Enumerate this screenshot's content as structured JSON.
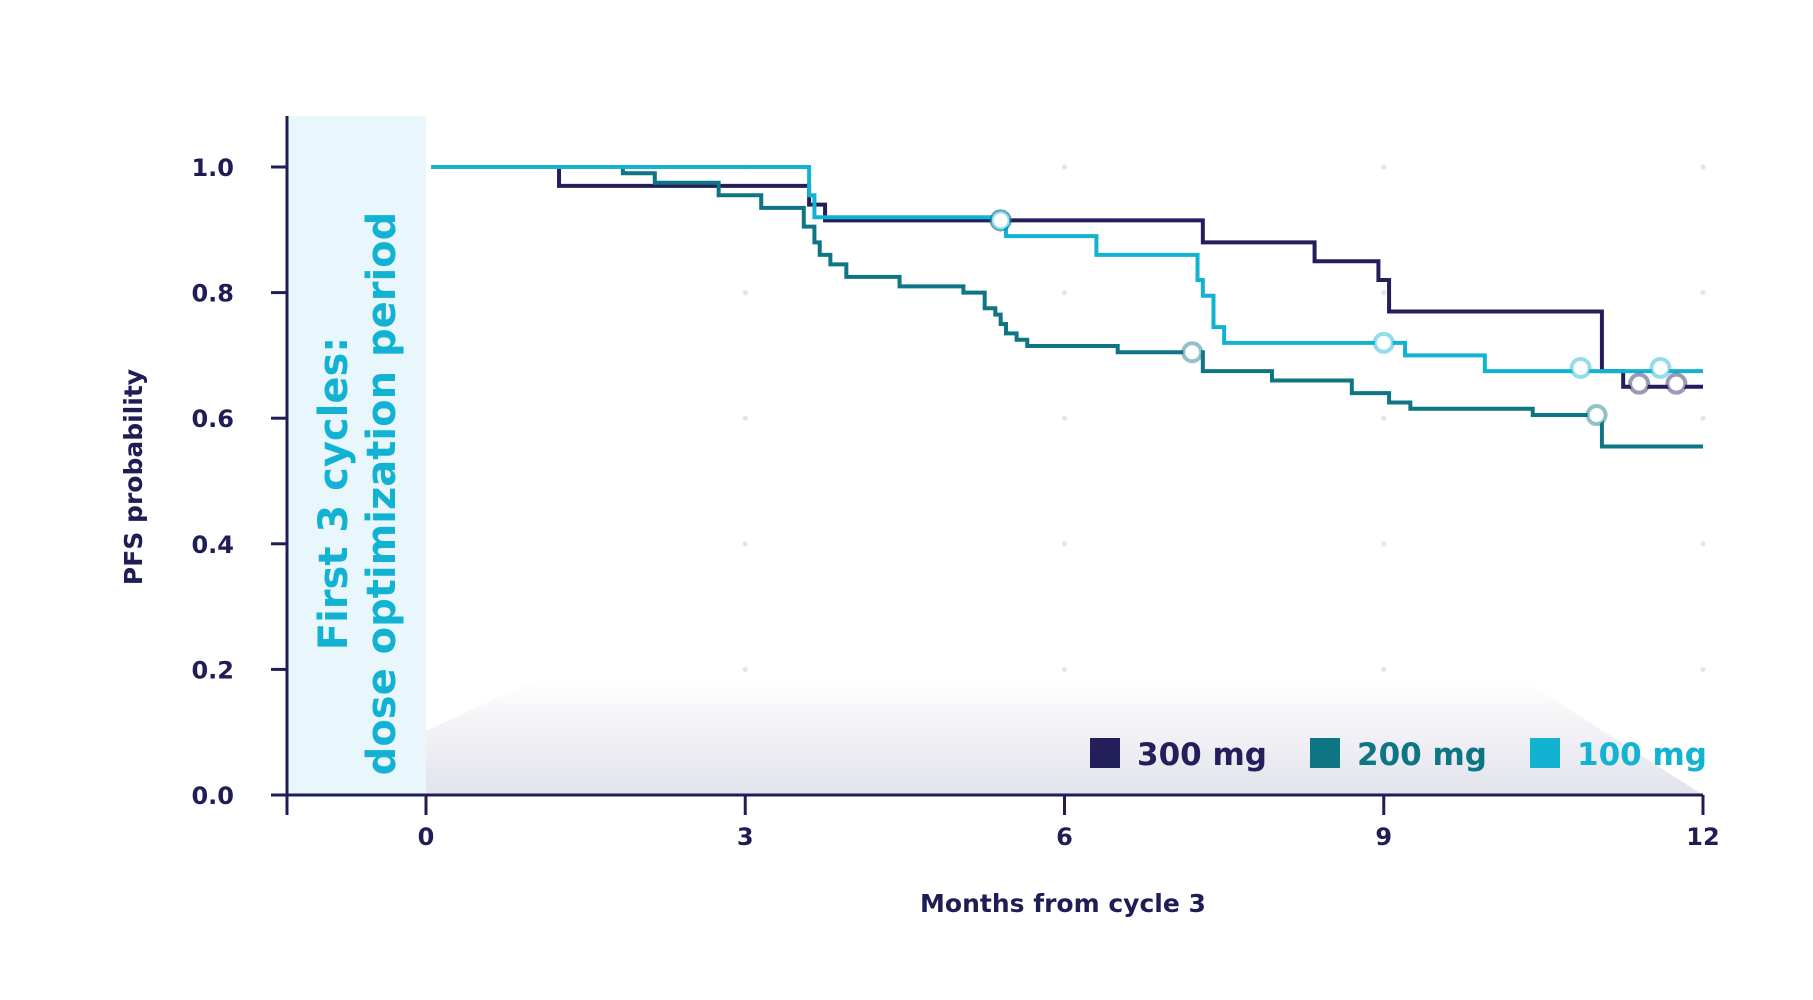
{
  "chart_data": {
    "type": "line",
    "step": true,
    "ylabel": "PFS probability",
    "xlabel": "Months from cycle 3",
    "xlim": [
      -1.3,
      12
    ],
    "ylim": [
      0,
      1.0
    ],
    "xticks": [
      0,
      3,
      6,
      9,
      12
    ],
    "xtick_labels": [
      "0",
      "3",
      "6",
      "9",
      "12"
    ],
    "yticks": [
      0.0,
      0.2,
      0.4,
      0.6,
      0.8,
      1.0
    ],
    "ytick_labels": [
      "0.0",
      "0.2",
      "0.4",
      "0.6",
      "0.8",
      "1.0"
    ],
    "grid": "dotted",
    "legend_position": "bottom-right",
    "shaded_region": {
      "x": [
        -1.3,
        0
      ],
      "color": "#e9f6fb",
      "label_line1": "First 3 cycles:",
      "label_line2": "dose optimization period"
    },
    "series": [
      {
        "name": "300 mg",
        "color": "#221f5b",
        "x": [
          0.05,
          1.25,
          3.6,
          3.75,
          7.25,
          7.3,
          8.35,
          8.95,
          9.05,
          11.05,
          11.25,
          12
        ],
        "y": [
          1.0,
          0.97,
          0.94,
          0.915,
          0.915,
          0.88,
          0.85,
          0.82,
          0.77,
          0.675,
          0.65,
          0.65
        ],
        "censored": [
          [
            5.4,
            0.915
          ],
          [
            11.4,
            0.655
          ],
          [
            11.75,
            0.655
          ]
        ]
      },
      {
        "name": "200 mg",
        "color": "#0e7585",
        "x": [
          0.05,
          1.85,
          2.15,
          2.75,
          3.15,
          3.55,
          3.65,
          3.7,
          3.8,
          3.95,
          4.45,
          5.05,
          5.25,
          5.35,
          5.4,
          5.45,
          5.55,
          5.65,
          5.85,
          6.5,
          7.2,
          7.3,
          7.95,
          8.7,
          9.05,
          9.25,
          9.6,
          10.4,
          11.0,
          11.05,
          12
        ],
        "y": [
          1.0,
          0.99,
          0.975,
          0.955,
          0.935,
          0.905,
          0.88,
          0.86,
          0.845,
          0.825,
          0.81,
          0.8,
          0.775,
          0.765,
          0.75,
          0.735,
          0.725,
          0.715,
          0.715,
          0.705,
          0.705,
          0.675,
          0.66,
          0.64,
          0.625,
          0.615,
          0.615,
          0.605,
          0.605,
          0.555,
          0.555
        ],
        "censored": [
          [
            7.2,
            0.705
          ],
          [
            11.0,
            0.605
          ]
        ]
      },
      {
        "name": "100 mg",
        "color": "#12b2d3",
        "x": [
          0.05,
          3.6,
          3.65,
          5.45,
          6.3,
          7.25,
          7.3,
          7.4,
          7.5,
          9.2,
          9.95,
          12
        ],
        "y": [
          1.0,
          0.955,
          0.92,
          0.89,
          0.86,
          0.82,
          0.795,
          0.745,
          0.72,
          0.7,
          0.675,
          0.675
        ],
        "censored": [
          [
            5.4,
            0.915
          ],
          [
            9.0,
            0.72
          ],
          [
            10.85,
            0.68
          ],
          [
            11.6,
            0.68
          ]
        ]
      }
    ]
  }
}
